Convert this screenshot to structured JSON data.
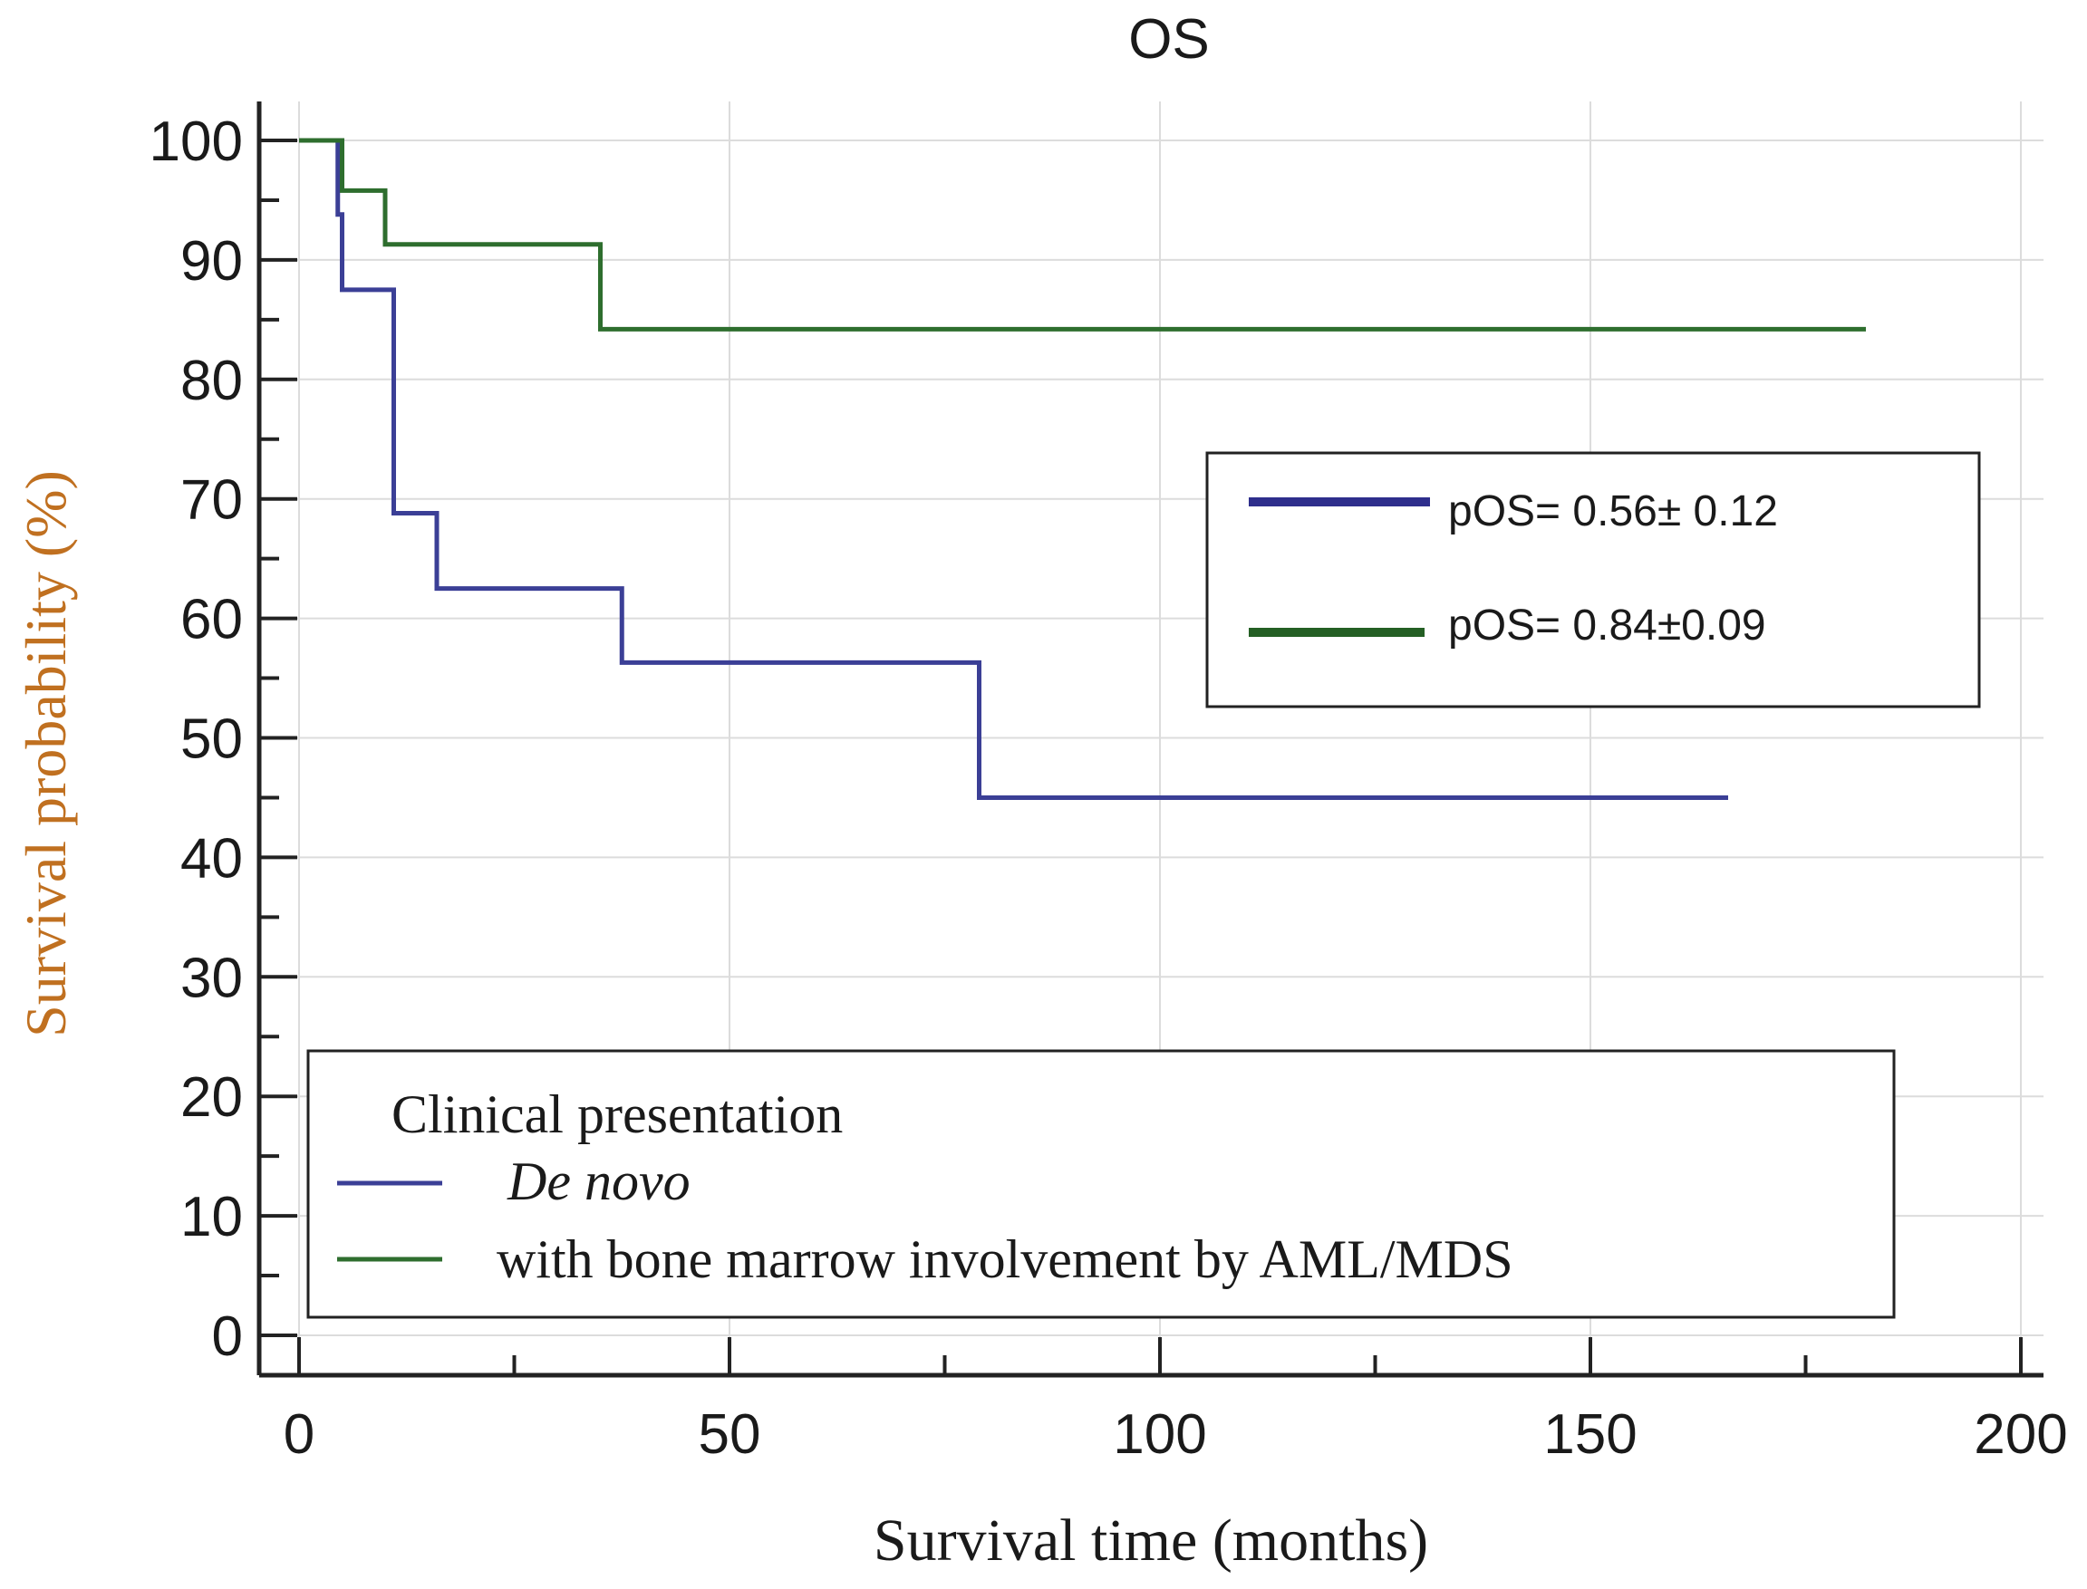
{
  "chart_data": {
    "type": "line",
    "subtype": "kaplan-meier-step",
    "title": "OS",
    "xlabel": "Survival time (months)",
    "ylabel": "Survival probability (%)",
    "xlim": [
      0,
      200
    ],
    "ylim": [
      0,
      100
    ],
    "x_ticks": [
      0,
      50,
      100,
      150,
      200
    ],
    "y_ticks": [
      0,
      10,
      20,
      30,
      40,
      50,
      60,
      70,
      80,
      90,
      100
    ],
    "grid": true,
    "series": [
      {
        "name": "De novo",
        "color": "#3b3f96",
        "x": [
          0,
          4,
          4.5,
          5,
          10.5,
          11,
          16,
          37.5,
          79,
          166
        ],
        "y": [
          100,
          100,
          93.8,
          87.5,
          87.5,
          68.8,
          62.5,
          56.3,
          45,
          45
        ]
      },
      {
        "name": "with bone marrow involvement by AML/MDS",
        "color": "#2e6e2e",
        "x": [
          0,
          5,
          10,
          35,
          182
        ],
        "y": [
          100,
          95.8,
          91.3,
          84.2,
          84.2
        ]
      }
    ],
    "annotation_box": {
      "entries": [
        {
          "label": "pOS= 0.56± 0.12",
          "color": "#2e2e8c"
        },
        {
          "label": "pOS= 0.84±0.09",
          "color": "#245f24"
        }
      ]
    },
    "legend": {
      "title": "Clinical presentation",
      "placement": "bottom-left",
      "entries": [
        {
          "label": "De novo",
          "italic": true,
          "color": "#3b3f96"
        },
        {
          "label": "with bone marrow involvement by AML/MDS",
          "italic": false,
          "color": "#2e6e2e"
        }
      ]
    }
  }
}
